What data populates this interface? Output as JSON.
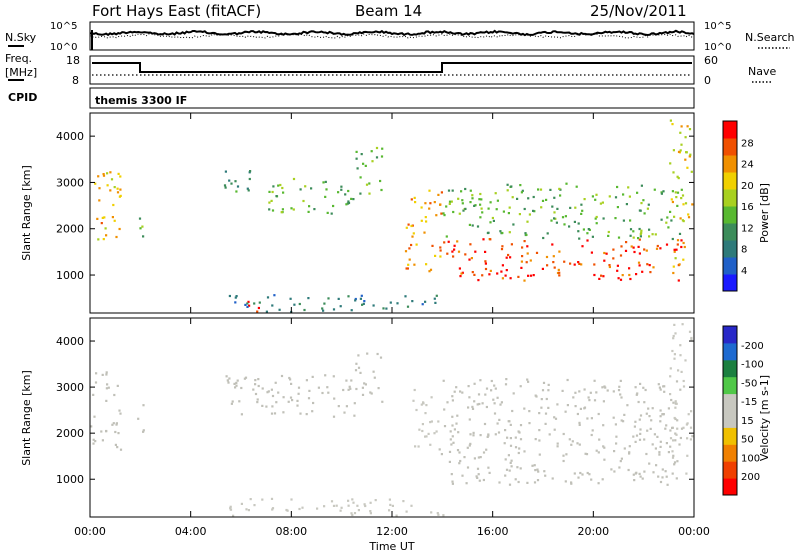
{
  "header": {
    "radar": "Fort Hays East (fitACF)",
    "beam": "Beam 14",
    "date": "25/Nov/2011"
  },
  "strip": {
    "nsky_label": "N.Sky",
    "nsearch_label": "N.Search",
    "nsky_ticks": [
      "10^5",
      "10^0"
    ],
    "nsearch_ticks": [
      "10^5",
      "10^0"
    ],
    "freq_label": "Freq.",
    "freq_unit": "[MHz]",
    "freq_ticks": [
      "18",
      "8"
    ],
    "nave_label": "Nave",
    "nave_ticks": [
      "60",
      "0"
    ],
    "cpid_label": "CPID",
    "cpid_value": "themis 3300 IF"
  },
  "colors": {
    "power_scale": [
      "#1a1aff",
      "#2060c8",
      "#2e7a7a",
      "#3c8c5a",
      "#58b830",
      "#a8d020",
      "#f0d000",
      "#f09000",
      "#f05000",
      "#ff0000"
    ],
    "velocity_scale": [
      "#2828c8",
      "#1e6ad0",
      "#1c8040",
      "#50c848",
      "#c8c8c0",
      "#c8c8c0",
      "#f0c000",
      "#f08000",
      "#f04000",
      "#ff0000"
    ],
    "ground_scatter": "#c0c0b8"
  },
  "chart_data": [
    {
      "type": "heatmap",
      "name": "power",
      "ylabel": "Slant Range [km]",
      "ylim": [
        180,
        4500
      ],
      "yticks": [
        1000,
        2000,
        3000,
        4000
      ],
      "xlim": [
        0,
        24
      ],
      "colorbar": {
        "label": "Power [dB]",
        "ticks": [
          4,
          8,
          12,
          16,
          20,
          24,
          28
        ],
        "range": [
          0,
          32
        ]
      },
      "features": [
        {
          "t0": 0.0,
          "t1": 1.2,
          "r_lo": 1650,
          "r_hi": 3350,
          "level": 22
        },
        {
          "t0": 1.8,
          "t1": 2.1,
          "r_lo": 1850,
          "r_hi": 2650,
          "level": 16
        },
        {
          "t0": 5.3,
          "t1": 7.0,
          "r_lo": 2800,
          "r_hi": 3300,
          "level": 10
        },
        {
          "t0": 7.0,
          "t1": 10.5,
          "r_lo": 2350,
          "r_hi": 3150,
          "level": 14
        },
        {
          "t0": 10.5,
          "t1": 11.6,
          "r_lo": 2700,
          "r_hi": 3800,
          "level": 14
        },
        {
          "t0": 6.2,
          "t1": 7.0,
          "r_lo": 200,
          "r_hi": 500,
          "level": 30
        },
        {
          "t0": 5.5,
          "t1": 14.0,
          "r_lo": 180,
          "r_hi": 600,
          "level": 8
        },
        {
          "t0": 12.5,
          "t1": 14.0,
          "r_lo": 1100,
          "r_hi": 2900,
          "level": 24
        },
        {
          "t0": 14.0,
          "t1": 23.5,
          "r_lo": 900,
          "r_hi": 1800,
          "level": 28
        },
        {
          "t0": 14.0,
          "t1": 23.5,
          "r_lo": 1800,
          "r_hi": 3000,
          "level": 14
        },
        {
          "t0": 23.0,
          "t1": 24.0,
          "r_lo": 1100,
          "r_hi": 4400,
          "level": 20
        }
      ]
    },
    {
      "type": "heatmap",
      "name": "velocity",
      "ylabel": "Slant Range [km]",
      "xlabel": "Time UT",
      "ylim": [
        180,
        4500
      ],
      "yticks": [
        1000,
        2000,
        3000,
        4000
      ],
      "xlim": [
        0,
        24
      ],
      "xticks": [
        "00:00",
        "04:00",
        "08:00",
        "12:00",
        "16:00",
        "20:00",
        "00:00"
      ],
      "colorbar": {
        "label": "Velocity [m s-1]",
        "ticks": [
          200,
          100,
          50,
          15,
          -15,
          -50,
          -100,
          -200
        ],
        "range": [
          -250,
          250
        ]
      },
      "features": [
        {
          "t0": 0.0,
          "t1": 1.2,
          "r_lo": 1650,
          "r_hi": 3350,
          "level": 0
        },
        {
          "t0": 1.8,
          "t1": 2.1,
          "r_lo": 1850,
          "r_hi": 2650,
          "level": 0
        },
        {
          "t0": 5.3,
          "t1": 10.5,
          "r_lo": 2350,
          "r_hi": 3300,
          "level": 0
        },
        {
          "t0": 10.5,
          "t1": 11.6,
          "r_lo": 2700,
          "r_hi": 3800,
          "level": 0
        },
        {
          "t0": 5.5,
          "t1": 14.0,
          "r_lo": 180,
          "r_hi": 600,
          "level": 30
        },
        {
          "t0": 12.8,
          "t1": 13.8,
          "r_lo": 1500,
          "r_hi": 3000,
          "level": 40
        },
        {
          "t0": 13.8,
          "t1": 23.5,
          "r_lo": 900,
          "r_hi": 2400,
          "level": 0
        },
        {
          "t0": 14.0,
          "t1": 23.5,
          "r_lo": 2400,
          "r_hi": 3200,
          "level": 0
        },
        {
          "t0": 23.0,
          "t1": 24.0,
          "r_lo": 1100,
          "r_hi": 4400,
          "level": -40
        }
      ]
    }
  ]
}
